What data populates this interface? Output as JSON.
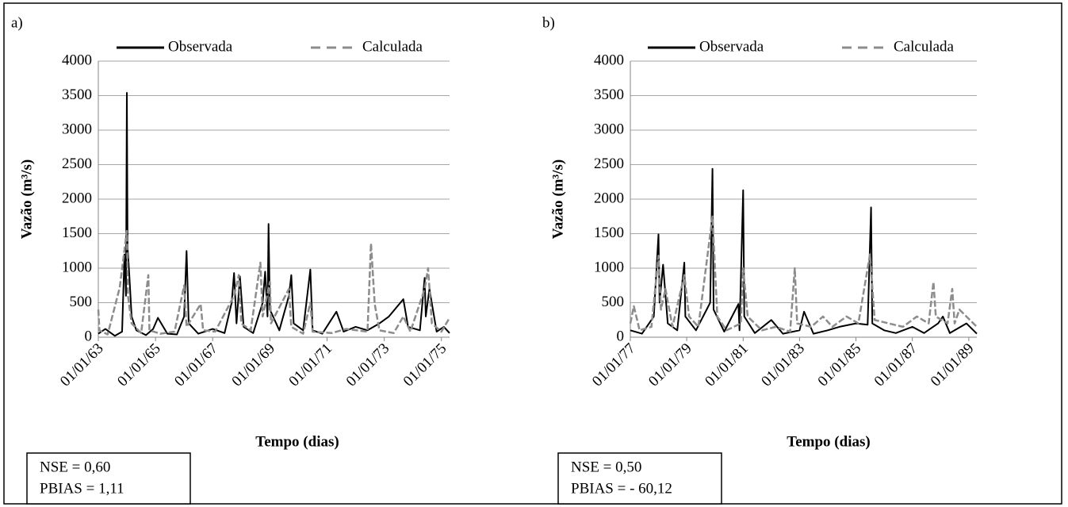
{
  "chart_data": [
    {
      "type": "line",
      "panel_label": "a)",
      "x_label": "Tempo (dias)",
      "y_label": "Vazão (m³/s)",
      "annotation": [
        "NSE = 0,60",
        "PBIAS = 1,11"
      ],
      "legend": "top",
      "grid": true,
      "xlim": [
        "01/01/63",
        "15/04/75"
      ],
      "xticks": [
        "01/01/63",
        "01/01/65",
        "01/01/67",
        "01/01/69",
        "01/01/71",
        "01/01/73",
        "01/01/75"
      ],
      "ylim": [
        0,
        4000
      ],
      "yticks": [
        0,
        500,
        1000,
        1500,
        2000,
        2500,
        3000,
        3500,
        4000
      ],
      "series": [
        {
          "name": "Observada",
          "color": "#000000",
          "dash": false,
          "x": [
            "01/01/63",
            "01/04/63",
            "01/08/63",
            "01/11/63",
            "01/12/63",
            "20/12/63",
            "01/01/64",
            "10/01/64",
            "01/02/64",
            "01/03/64",
            "01/05/64",
            "01/09/64",
            "01/12/64",
            "01/02/65",
            "01/06/65",
            "01/10/65",
            "01/01/66",
            "01/02/66",
            "01/03/66",
            "01/07/66",
            "01/01/67",
            "01/06/67",
            "01/09/67",
            "01/10/67",
            "01/11/67",
            "15/12/67",
            "01/02/68",
            "01/06/68",
            "01/10/68",
            "01/11/68",
            "01/12/68",
            "15/12/68",
            "01/01/69",
            "01/05/69",
            "01/09/69",
            "01/10/69",
            "01/11/69",
            "01/03/70",
            "01/06/70",
            "01/07/70",
            "01/11/70",
            "01/05/71",
            "01/08/71",
            "01/01/72",
            "01/06/72",
            "01/11/72",
            "01/03/73",
            "01/09/73",
            "01/11/73",
            "01/04/74",
            "01/06/74",
            "15/06/74",
            "01/08/74",
            "01/11/74",
            "01/02/75",
            "15/04/75"
          ],
          "values": [
            50,
            120,
            20,
            80,
            1200,
            600,
            3540,
            1300,
            900,
            300,
            100,
            30,
            120,
            280,
            50,
            40,
            300,
            1250,
            200,
            50,
            120,
            60,
            500,
            930,
            200,
            880,
            150,
            60,
            500,
            950,
            300,
            1640,
            400,
            100,
            600,
            900,
            200,
            100,
            980,
            100,
            50,
            370,
            80,
            150,
            100,
            200,
            300,
            550,
            150,
            100,
            860,
            300,
            700,
            80,
            150,
            60
          ]
        },
        {
          "name": "Calculada",
          "color": "#8c8c8c",
          "dash": true,
          "x": [
            "01/01/63",
            "15/01/63",
            "01/05/63",
            "01/10/63",
            "01/01/64",
            "15/01/64",
            "01/03/64",
            "01/07/64",
            "01/10/64",
            "15/10/64",
            "01/03/65",
            "01/09/65",
            "01/01/66",
            "01/02/66",
            "01/08/66",
            "01/09/66",
            "01/02/67",
            "01/10/67",
            "01/12/67",
            "01/01/68",
            "01/05/68",
            "01/09/68",
            "01/10/68",
            "01/01/69",
            "15/01/69",
            "01/09/69",
            "01/10/69",
            "01/03/70",
            "01/06/70",
            "01/07/70",
            "01/03/71",
            "01/09/71",
            "01/06/72",
            "15/07/72",
            "01/09/72",
            "01/11/72",
            "01/05/73",
            "01/09/73",
            "01/12/73",
            "01/06/74",
            "15/07/74",
            "01/09/74",
            "01/01/75",
            "15/04/75"
          ],
          "values": [
            400,
            100,
            40,
            720,
            1540,
            600,
            200,
            60,
            900,
            100,
            50,
            80,
            750,
            150,
            480,
            100,
            80,
            600,
            900,
            200,
            100,
            1080,
            300,
            800,
            200,
            700,
            150,
            50,
            500,
            80,
            60,
            120,
            80,
            1360,
            480,
            100,
            60,
            300,
            80,
            700,
            1000,
            200,
            80,
            280
          ]
        }
      ]
    },
    {
      "type": "line",
      "panel_label": "b)",
      "x_label": "Tempo (dias)",
      "y_label": "Vazão (m³/s)",
      "annotation": [
        "NSE = 0,50",
        "PBIAS = - 60,12"
      ],
      "legend": "top",
      "grid": true,
      "xlim": [
        "01/01/77",
        "15/04/89"
      ],
      "xticks": [
        "01/01/77",
        "01/01/79",
        "01/01/81",
        "01/01/83",
        "01/01/85",
        "01/01/87",
        "01/01/89"
      ],
      "ylim": [
        0,
        4000
      ],
      "yticks": [
        0,
        500,
        1000,
        1500,
        2000,
        2500,
        3000,
        3500,
        4000
      ],
      "series": [
        {
          "name": "Observada",
          "color": "#000000",
          "dash": false,
          "x": [
            "01/01/77",
            "01/06/77",
            "01/11/77",
            "01/01/78",
            "15/01/78",
            "01/03/78",
            "01/05/78",
            "01/09/78",
            "01/12/78",
            "15/12/78",
            "01/05/79",
            "01/11/79",
            "01/12/79",
            "15/12/79",
            "01/05/80",
            "01/11/80",
            "15/11/80",
            "01/01/81",
            "15/01/81",
            "01/06/81",
            "01/01/82",
            "01/06/82",
            "01/01/83",
            "01/03/83",
            "01/07/83",
            "01/01/84",
            "01/06/84",
            "01/01/85",
            "01/06/85",
            "15/07/85",
            "01/08/85",
            "01/01/86",
            "01/06/86",
            "01/01/87",
            "01/06/87",
            "01/12/87",
            "01/02/88",
            "01/05/88",
            "01/12/88",
            "15/04/89"
          ],
          "values": [
            100,
            50,
            300,
            1490,
            500,
            1050,
            200,
            100,
            1080,
            300,
            100,
            500,
            2440,
            400,
            80,
            480,
            100,
            2130,
            300,
            60,
            250,
            50,
            100,
            370,
            50,
            100,
            150,
            200,
            180,
            1880,
            200,
            100,
            60,
            150,
            60,
            200,
            300,
            60,
            200,
            50
          ]
        },
        {
          "name": "Calculada",
          "color": "#8c8c8c",
          "dash": true,
          "x": [
            "01/01/77",
            "15/02/77",
            "01/05/77",
            "01/10/77",
            "01/01/78",
            "01/02/78",
            "01/04/78",
            "01/07/78",
            "01/12/78",
            "01/02/79",
            "01/06/79",
            "01/12/79",
            "01/02/80",
            "01/06/80",
            "01/12/80",
            "01/01/81",
            "01/03/81",
            "01/09/81",
            "01/03/82",
            "01/09/82",
            "01/11/82",
            "01/12/82",
            "01/06/83",
            "01/11/83",
            "01/03/84",
            "01/09/84",
            "01/02/85",
            "01/07/85",
            "01/09/85",
            "01/03/86",
            "01/09/86",
            "01/03/87",
            "01/08/87",
            "01/10/87",
            "01/11/87",
            "01/04/88",
            "01/06/88",
            "01/07/88",
            "01/09/88",
            "15/04/89"
          ],
          "values": [
            200,
            450,
            100,
            150,
            1180,
            400,
            700,
            150,
            900,
            300,
            150,
            1750,
            300,
            100,
            200,
            1000,
            300,
            100,
            150,
            80,
            1000,
            200,
            150,
            300,
            150,
            300,
            200,
            1200,
            250,
            200,
            150,
            300,
            200,
            800,
            300,
            200,
            700,
            200,
            400,
            150
          ]
        }
      ]
    }
  ]
}
